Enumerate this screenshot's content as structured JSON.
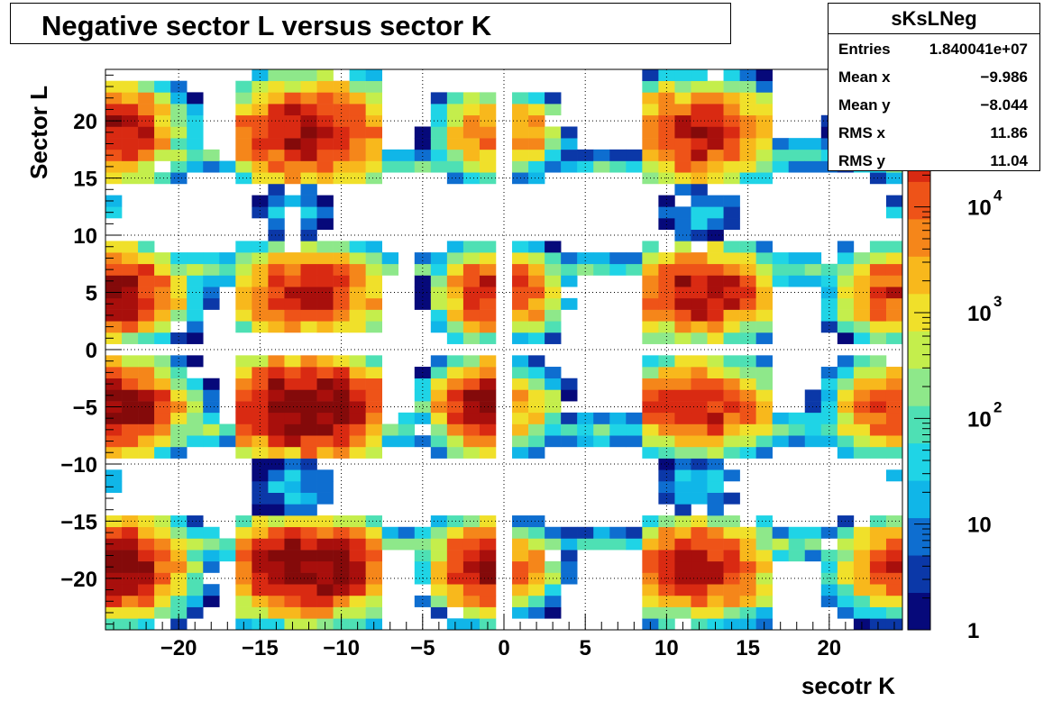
{
  "chart_data": {
    "type": "heatmap",
    "title": "Negative sector L versus sector K",
    "xlabel": "secotr K",
    "ylabel": "Sector L",
    "xlim": [
      -24.5,
      24.5
    ],
    "ylim": [
      -24.5,
      24.5
    ],
    "x_ticks": [
      -20,
      -15,
      -10,
      -5,
      0,
      5,
      10,
      15,
      20
    ],
    "x_tick_labels": [
      "−20",
      "−15",
      "−10",
      "−5",
      "0",
      "5",
      "10",
      "15",
      "20"
    ],
    "y_ticks": [
      20,
      15,
      10,
      5,
      0,
      -5,
      -10,
      -15,
      -20
    ],
    "y_tick_labels": [
      "20",
      "15",
      "10",
      "5",
      "0",
      "−5",
      "−10",
      "−15",
      "−20"
    ],
    "grid": true,
    "color_scale": "log",
    "z_range": [
      1,
      200000
    ],
    "colorbar_ticks": [
      {
        "value": 1,
        "base": "1",
        "exp": ""
      },
      {
        "value": 10,
        "base": "10",
        "exp": ""
      },
      {
        "value": 100,
        "base": "10",
        "exp": "2"
      },
      {
        "value": 1000,
        "base": "10",
        "exp": "3"
      },
      {
        "value": 10000,
        "base": "10",
        "exp": "4"
      }
    ],
    "colormap": [
      "#06097a",
      "#0b38a8",
      "#0e6ed0",
      "#10b6e8",
      "#1fd4e6",
      "#4ee0b4",
      "#8ee88a",
      "#c4ee4c",
      "#f0e02a",
      "#f8b81c",
      "#f5861a",
      "#ee5318",
      "#d92a12",
      "#a80f0c",
      "#840a0a"
    ],
    "stats": {
      "name": "sKsLNeg",
      "rows": [
        {
          "label": "Entries",
          "value": "1.840041e+07"
        },
        {
          "label": "Mean x",
          "value": "−9.986"
        },
        {
          "label": "Mean y",
          "value": "−8.044"
        },
        {
          "label": "RMS x",
          "value": "11.86"
        },
        {
          "label": "RMS y",
          "value": "11.04"
        }
      ]
    },
    "clusters": [
      {
        "x": -12,
        "y": 19,
        "sx": 3.2,
        "sy": 2.8,
        "peak": 4.9,
        "xr": [
          -16,
          -8
        ],
        "yr": [
          15,
          24
        ]
      },
      {
        "x": -12,
        "y": -5,
        "sx": 3.4,
        "sy": 2.6,
        "peak": 5.4,
        "xr": [
          -16,
          -8
        ],
        "yr": [
          -9,
          -1
        ]
      },
      {
        "x": -12,
        "y": -19,
        "sx": 3.2,
        "sy": 2.6,
        "peak": 5.3,
        "xr": [
          -16,
          -8
        ],
        "yr": [
          -24,
          -15
        ]
      },
      {
        "x": -12,
        "y": 5,
        "sx": 3.2,
        "sy": 2.4,
        "peak": 4.6,
        "xr": [
          -16,
          -8
        ],
        "yr": [
          2,
          9
        ]
      },
      {
        "x": 12,
        "y": 19,
        "sx": 3.0,
        "sy": 2.6,
        "peak": 4.7,
        "xr": [
          9,
          16
        ],
        "yr": [
          15,
          24
        ]
      },
      {
        "x": 12,
        "y": 5,
        "sx": 3.0,
        "sy": 2.4,
        "peak": 4.8,
        "xr": [
          9,
          16
        ],
        "yr": [
          1,
          9
        ]
      },
      {
        "x": 12,
        "y": -5,
        "sx": 3.0,
        "sy": 2.4,
        "peak": 4.7,
        "xr": [
          9,
          16
        ],
        "yr": [
          -9,
          -1
        ]
      },
      {
        "x": 12,
        "y": -19,
        "sx": 3.0,
        "sy": 2.6,
        "peak": 4.7,
        "xr": [
          9,
          16
        ],
        "yr": [
          -24,
          -15
        ]
      },
      {
        "x": -24,
        "y": 19,
        "sx": 2.4,
        "sy": 2.6,
        "peak": 4.8,
        "xr": [
          -24,
          -18
        ],
        "yr": [
          15,
          23
        ]
      },
      {
        "x": -24,
        "y": 5,
        "sx": 2.6,
        "sy": 2.4,
        "peak": 4.9,
        "xr": [
          -24,
          -17
        ],
        "yr": [
          1,
          9
        ]
      },
      {
        "x": -24,
        "y": -5,
        "sx": 2.6,
        "sy": 2.4,
        "peak": 5.2,
        "xr": [
          -24,
          -17
        ],
        "yr": [
          -9,
          -1
        ]
      },
      {
        "x": -24,
        "y": -19,
        "sx": 2.6,
        "sy": 2.6,
        "peak": 5.3,
        "xr": [
          -24,
          -17
        ],
        "yr": [
          -24,
          -15
        ]
      },
      {
        "x": -1,
        "y": 19,
        "sx": 1.8,
        "sy": 2.4,
        "peak": 4.0,
        "xr": [
          -5,
          -1
        ],
        "yr": [
          15,
          22
        ]
      },
      {
        "x": -1,
        "y": 5,
        "sx": 1.8,
        "sy": 2.4,
        "peak": 4.5,
        "xr": [
          -5,
          -1
        ],
        "yr": [
          1,
          9
        ]
      },
      {
        "x": -1,
        "y": -5,
        "sx": 2.0,
        "sy": 2.4,
        "peak": 5.1,
        "xr": [
          -5,
          -1
        ],
        "yr": [
          -9,
          -1
        ]
      },
      {
        "x": -1,
        "y": -19,
        "sx": 2.0,
        "sy": 2.4,
        "peak": 5.0,
        "xr": [
          -5,
          -1
        ],
        "yr": [
          -24,
          -15
        ]
      },
      {
        "x": 1,
        "y": 19,
        "sx": 1.6,
        "sy": 2.2,
        "peak": 3.7,
        "xr": [
          1,
          5
        ],
        "yr": [
          15,
          22
        ]
      },
      {
        "x": 1,
        "y": 5,
        "sx": 1.6,
        "sy": 2.2,
        "peak": 4.3,
        "xr": [
          1,
          5
        ],
        "yr": [
          1,
          9
        ]
      },
      {
        "x": 1,
        "y": -5,
        "sx": 1.6,
        "sy": 2.2,
        "peak": 3.6,
        "xr": [
          1,
          5
        ],
        "yr": [
          -9,
          -1
        ]
      },
      {
        "x": 1,
        "y": -19,
        "sx": 1.6,
        "sy": 2.2,
        "peak": 3.8,
        "xr": [
          1,
          5
        ],
        "yr": [
          -24,
          -15
        ]
      },
      {
        "x": 24,
        "y": 19,
        "sx": 2.0,
        "sy": 2.2,
        "peak": 3.6,
        "xr": [
          20,
          24
        ],
        "yr": [
          15,
          22
        ]
      },
      {
        "x": 24,
        "y": 5,
        "sx": 2.2,
        "sy": 2.4,
        "peak": 4.4,
        "xr": [
          19,
          24
        ],
        "yr": [
          1,
          9
        ]
      },
      {
        "x": 24,
        "y": -5,
        "sx": 2.2,
        "sy": 2.4,
        "peak": 4.5,
        "xr": [
          19,
          24
        ],
        "yr": [
          -9,
          -1
        ]
      },
      {
        "x": 24,
        "y": -19,
        "sx": 2.2,
        "sy": 2.4,
        "peak": 4.4,
        "xr": [
          19,
          24
        ],
        "yr": [
          -24,
          -15
        ]
      },
      {
        "x": -13,
        "y": 12,
        "sx": 2.0,
        "sy": 2.0,
        "peak": 1.4,
        "xr": [
          -15,
          -9
        ],
        "yr": [
          10,
          14
        ]
      },
      {
        "x": -13,
        "y": -12,
        "sx": 2.0,
        "sy": 2.0,
        "peak": 1.4,
        "xr": [
          -15,
          -9
        ],
        "yr": [
          -15,
          -10
        ]
      },
      {
        "x": 12,
        "y": 12,
        "sx": 2.0,
        "sy": 2.0,
        "peak": 1.5,
        "xr": [
          9,
          15
        ],
        "yr": [
          10,
          14
        ]
      },
      {
        "x": 12,
        "y": -12,
        "sx": 2.0,
        "sy": 2.0,
        "peak": 1.5,
        "xr": [
          9,
          15
        ],
        "yr": [
          -15,
          -10
        ]
      },
      {
        "x": -24,
        "y": 12,
        "sx": 1.0,
        "sy": 1.4,
        "peak": 1.3,
        "xr": [
          -24,
          -24
        ],
        "yr": [
          12,
          13
        ]
      },
      {
        "x": -24,
        "y": -12,
        "sx": 1.0,
        "sy": 1.4,
        "peak": 1.3,
        "xr": [
          -24,
          -24
        ],
        "yr": [
          -12,
          -11
        ]
      },
      {
        "x": 24,
        "y": 12,
        "sx": 1.0,
        "sy": 1.4,
        "peak": 1.3,
        "xr": [
          24,
          24
        ],
        "yr": [
          12,
          13
        ]
      },
      {
        "x": 24,
        "y": -12,
        "sx": 1.0,
        "sy": 1.4,
        "peak": 1.3,
        "xr": [
          24,
          24
        ],
        "yr": [
          -12,
          -11
        ]
      },
      {
        "x": -6,
        "y": 16,
        "sx": 3.5,
        "sy": 1.0,
        "peak": 2.0,
        "xr": [
          -9,
          -4
        ],
        "yr": [
          16,
          17
        ]
      },
      {
        "x": -6,
        "y": 7,
        "sx": 3.5,
        "sy": 1.0,
        "peak": 2.0,
        "xr": [
          -9,
          -4
        ],
        "yr": [
          7,
          8
        ]
      },
      {
        "x": -6,
        "y": -7,
        "sx": 3.5,
        "sy": 1.0,
        "peak": 2.1,
        "xr": [
          -9,
          -4
        ],
        "yr": [
          -8,
          -6
        ]
      },
      {
        "x": -6,
        "y": -17,
        "sx": 3.5,
        "sy": 1.0,
        "peak": 2.1,
        "xr": [
          -9,
          -4
        ],
        "yr": [
          -17,
          -16
        ]
      },
      {
        "x": 6,
        "y": 16,
        "sx": 3.5,
        "sy": 1.0,
        "peak": 1.8,
        "xr": [
          4,
          8
        ],
        "yr": [
          16,
          17
        ]
      },
      {
        "x": 6,
        "y": 7,
        "sx": 3.5,
        "sy": 1.0,
        "peak": 1.8,
        "xr": [
          4,
          8
        ],
        "yr": [
          7,
          8
        ]
      },
      {
        "x": 6,
        "y": -7,
        "sx": 3.5,
        "sy": 1.0,
        "peak": 1.9,
        "xr": [
          4,
          8
        ],
        "yr": [
          -8,
          -6
        ]
      },
      {
        "x": 6,
        "y": -17,
        "sx": 3.5,
        "sy": 1.0,
        "peak": 1.9,
        "xr": [
          4,
          8
        ],
        "yr": [
          -17,
          -16
        ]
      },
      {
        "x": -19,
        "y": 7,
        "sx": 3.0,
        "sy": 1.0,
        "peak": 2.3,
        "xr": [
          -21,
          -16
        ],
        "yr": [
          6,
          8
        ]
      },
      {
        "x": -19,
        "y": -7,
        "sx": 3.0,
        "sy": 1.0,
        "peak": 2.4,
        "xr": [
          -21,
          -16
        ],
        "yr": [
          -8,
          -6
        ]
      },
      {
        "x": -19,
        "y": -17,
        "sx": 3.0,
        "sy": 1.0,
        "peak": 2.4,
        "xr": [
          -21,
          -16
        ],
        "yr": [
          -18,
          -16
        ]
      },
      {
        "x": -19,
        "y": 17,
        "sx": 3.0,
        "sy": 1.0,
        "peak": 2.2,
        "xr": [
          -21,
          -16
        ],
        "yr": [
          16,
          18
        ]
      },
      {
        "x": 18,
        "y": 7,
        "sx": 3.0,
        "sy": 1.0,
        "peak": 2.1,
        "xr": [
          16,
          21
        ],
        "yr": [
          6,
          8
        ]
      },
      {
        "x": 18,
        "y": -7,
        "sx": 3.0,
        "sy": 1.0,
        "peak": 2.2,
        "xr": [
          16,
          21
        ],
        "yr": [
          -8,
          -6
        ]
      },
      {
        "x": 18,
        "y": -17,
        "sx": 3.0,
        "sy": 1.0,
        "peak": 2.2,
        "xr": [
          16,
          21
        ],
        "yr": [
          -18,
          -16
        ]
      },
      {
        "x": 18,
        "y": 17,
        "sx": 3.0,
        "sy": 1.0,
        "peak": 2.0,
        "xr": [
          16,
          21
        ],
        "yr": [
          16,
          18
        ]
      }
    ]
  }
}
